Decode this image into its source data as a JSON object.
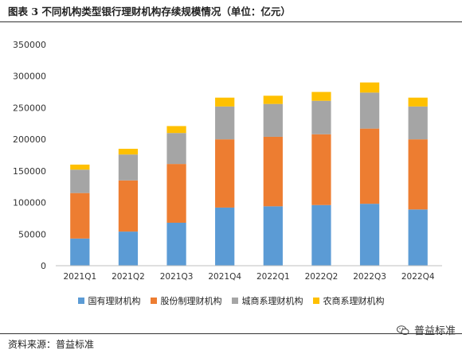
{
  "title": "图表 3 不同机构类型银行理财机构存续规模情况（单位：亿元）",
  "source": "资料来源：普益标准",
  "watermark": "普益标准",
  "chart_data": {
    "type": "bar",
    "stacked": true,
    "categories": [
      "2021Q1",
      "2021Q2",
      "2021Q3",
      "2021Q4",
      "2022Q1",
      "2022Q2",
      "2022Q3",
      "2022Q4"
    ],
    "series": [
      {
        "name": "国有理财机构",
        "color": "#5b9bd5",
        "values": [
          43000,
          54000,
          68000,
          92000,
          94000,
          96000,
          98000,
          89000
        ]
      },
      {
        "name": "股份制理财机构",
        "color": "#ed7d31",
        "values": [
          72000,
          81000,
          93000,
          108000,
          110000,
          112000,
          119000,
          111000
        ]
      },
      {
        "name": "城商系理财机构",
        "color": "#a5a5a5",
        "values": [
          37000,
          41000,
          49000,
          52000,
          52000,
          53000,
          57000,
          52000
        ]
      },
      {
        "name": "农商系理财机构",
        "color": "#ffc000",
        "values": [
          8000,
          9000,
          11000,
          14000,
          13000,
          14000,
          16000,
          14000
        ]
      }
    ],
    "ylim": [
      0,
      350000
    ],
    "yticks": [
      "0",
      "50000",
      "100000",
      "150000",
      "200000",
      "250000",
      "300000",
      "350000"
    ],
    "grid": false,
    "legend_position": "bottom"
  }
}
